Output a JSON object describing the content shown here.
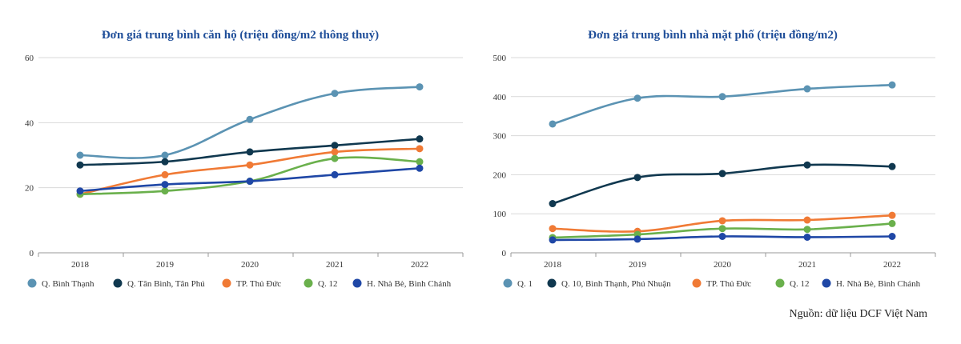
{
  "chart_data": [
    {
      "type": "line",
      "title": "Đơn giá trung bình căn hộ (triệu đồng/m2 thông thuỷ)",
      "categories": [
        "2018",
        "2019",
        "2020",
        "2021",
        "2022"
      ],
      "ylim": [
        0,
        60
      ],
      "yticks": [
        0,
        20,
        40,
        60
      ],
      "grid": true,
      "legend_position": "bottom",
      "series": [
        {
          "name": "Q. Bình Thạnh",
          "color": "#5b93b3",
          "values": [
            30,
            30,
            41,
            49,
            51
          ]
        },
        {
          "name": "Q. Tân Bình, Tân Phú",
          "color": "#10384f",
          "values": [
            27,
            28,
            31,
            33,
            35
          ]
        },
        {
          "name": "TP. Thủ Đức",
          "color": "#f07a35",
          "values": [
            18,
            24,
            27,
            31,
            32
          ]
        },
        {
          "name": "Q. 12",
          "color": "#6ab04c",
          "values": [
            18,
            19,
            22,
            29,
            28
          ]
        },
        {
          "name": "H. Nhà Bè, Bình Chánh",
          "color": "#1f47a6",
          "values": [
            19,
            21,
            22,
            24,
            26
          ]
        }
      ]
    },
    {
      "type": "line",
      "title": "Đơn giá trung bình nhà mặt phố (triệu đồng/m2)",
      "categories": [
        "2018",
        "2019",
        "2020",
        "2021",
        "2022"
      ],
      "ylim": [
        0,
        500
      ],
      "yticks": [
        0,
        100,
        200,
        300,
        400,
        500
      ],
      "grid": true,
      "legend_position": "bottom",
      "series": [
        {
          "name": "Q. 1",
          "color": "#5b93b3",
          "values": [
            330,
            396,
            400,
            420,
            430
          ]
        },
        {
          "name": "Q. 10, Bình Thạnh, Phú Nhuận",
          "color": "#10384f",
          "values": [
            126,
            193,
            203,
            225,
            221
          ]
        },
        {
          "name": "TP. Thủ Đức",
          "color": "#f07a35",
          "values": [
            62,
            55,
            82,
            84,
            96
          ]
        },
        {
          "name": "Q. 12",
          "color": "#6ab04c",
          "values": [
            39,
            47,
            62,
            60,
            75
          ]
        },
        {
          "name": "H. Nhà Bè, Bình Chánh",
          "color": "#1f47a6",
          "values": [
            33,
            35,
            42,
            40,
            42
          ]
        }
      ]
    }
  ],
  "source_note": "Nguồn: dữ liệu DCF Việt Nam"
}
